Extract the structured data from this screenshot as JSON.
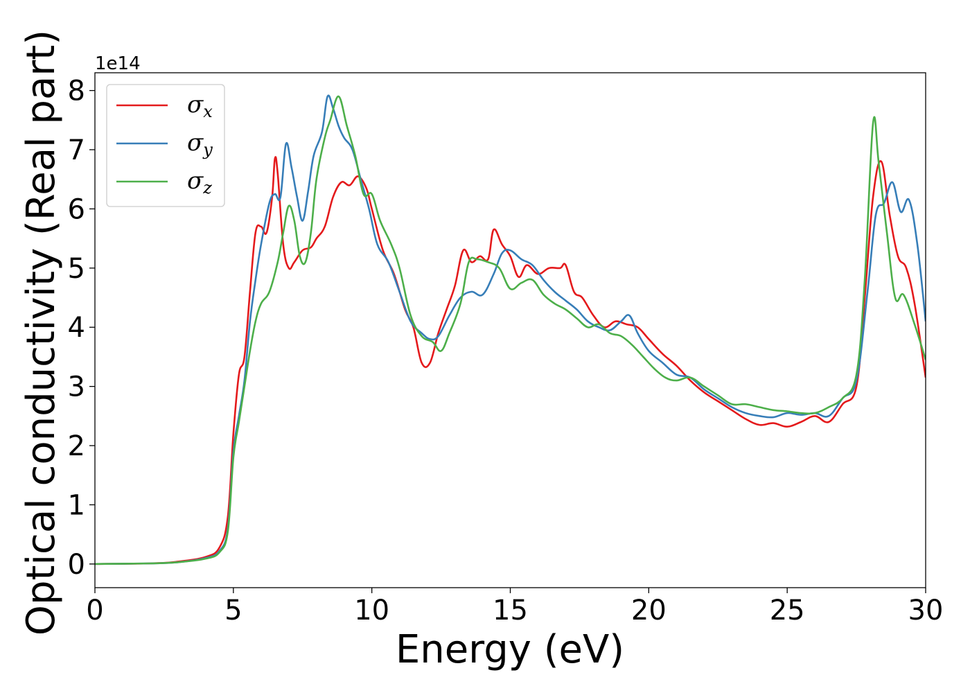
{
  "chart_data": {
    "type": "line",
    "xlabel": "Energy (eV)",
    "ylabel": "Optical conductivity (Real part)",
    "y_offset_label": "1e14",
    "xlim": [
      0,
      30
    ],
    "ylim": [
      -0.4,
      8.3
    ],
    "xticks": [
      0,
      5,
      10,
      15,
      20,
      25,
      30
    ],
    "yticks": [
      0,
      1,
      2,
      3,
      4,
      5,
      6,
      7,
      8
    ],
    "grid": false,
    "legend": {
      "placement": "top-left"
    },
    "series": [
      {
        "name": "σx",
        "symbol": "σ",
        "subscript": "x",
        "color": "#e41a1c",
        "points": [
          [
            0,
            0
          ],
          [
            2,
            0.01
          ],
          [
            3,
            0.04
          ],
          [
            4,
            0.12
          ],
          [
            4.5,
            0.28
          ],
          [
            4.8,
            0.8
          ],
          [
            5.0,
            2.2
          ],
          [
            5.2,
            3.2
          ],
          [
            5.4,
            3.5
          ],
          [
            5.6,
            4.6
          ],
          [
            5.8,
            5.6
          ],
          [
            6.0,
            5.7
          ],
          [
            6.2,
            5.6
          ],
          [
            6.4,
            6.2
          ],
          [
            6.5,
            6.85
          ],
          [
            6.6,
            6.6
          ],
          [
            6.8,
            5.4
          ],
          [
            7.0,
            5.0
          ],
          [
            7.2,
            5.1
          ],
          [
            7.5,
            5.3
          ],
          [
            7.8,
            5.35
          ],
          [
            8.0,
            5.5
          ],
          [
            8.3,
            5.7
          ],
          [
            8.6,
            6.2
          ],
          [
            8.9,
            6.45
          ],
          [
            9.2,
            6.4
          ],
          [
            9.5,
            6.55
          ],
          [
            9.8,
            6.35
          ],
          [
            10.0,
            6.0
          ],
          [
            10.4,
            5.3
          ],
          [
            10.8,
            4.9
          ],
          [
            11.2,
            4.3
          ],
          [
            11.5,
            4.0
          ],
          [
            11.8,
            3.4
          ],
          [
            12.1,
            3.4
          ],
          [
            12.4,
            3.9
          ],
          [
            12.7,
            4.3
          ],
          [
            13.0,
            4.7
          ],
          [
            13.3,
            5.3
          ],
          [
            13.6,
            5.1
          ],
          [
            13.9,
            5.2
          ],
          [
            14.2,
            5.15
          ],
          [
            14.4,
            5.65
          ],
          [
            14.7,
            5.4
          ],
          [
            15.0,
            5.2
          ],
          [
            15.3,
            4.85
          ],
          [
            15.6,
            5.05
          ],
          [
            16.0,
            4.9
          ],
          [
            16.4,
            5.0
          ],
          [
            16.8,
            5.0
          ],
          [
            17.0,
            5.05
          ],
          [
            17.3,
            4.6
          ],
          [
            17.6,
            4.5
          ],
          [
            18.0,
            4.2
          ],
          [
            18.4,
            4.0
          ],
          [
            18.8,
            4.1
          ],
          [
            19.2,
            4.05
          ],
          [
            19.6,
            4.0
          ],
          [
            20.0,
            3.8
          ],
          [
            20.5,
            3.55
          ],
          [
            21.0,
            3.35
          ],
          [
            21.5,
            3.1
          ],
          [
            22.0,
            2.9
          ],
          [
            22.5,
            2.75
          ],
          [
            23.0,
            2.6
          ],
          [
            23.5,
            2.45
          ],
          [
            24.0,
            2.35
          ],
          [
            24.5,
            2.38
          ],
          [
            25.0,
            2.32
          ],
          [
            25.5,
            2.4
          ],
          [
            26.0,
            2.5
          ],
          [
            26.5,
            2.4
          ],
          [
            27.0,
            2.7
          ],
          [
            27.5,
            3.0
          ],
          [
            27.8,
            4.5
          ],
          [
            28.1,
            6.2
          ],
          [
            28.4,
            6.8
          ],
          [
            28.7,
            5.9
          ],
          [
            29.0,
            5.2
          ],
          [
            29.3,
            5.0
          ],
          [
            29.6,
            4.4
          ],
          [
            30.0,
            3.15
          ]
        ]
      },
      {
        "name": "σy",
        "symbol": "σ",
        "subscript": "y",
        "color": "#377eb8",
        "points": [
          [
            0,
            0
          ],
          [
            2,
            0.01
          ],
          [
            3,
            0.03
          ],
          [
            4,
            0.1
          ],
          [
            4.5,
            0.22
          ],
          [
            4.8,
            0.6
          ],
          [
            5.0,
            1.9
          ],
          [
            5.2,
            2.5
          ],
          [
            5.4,
            3.1
          ],
          [
            5.6,
            4.1
          ],
          [
            5.8,
            4.8
          ],
          [
            6.0,
            5.4
          ],
          [
            6.3,
            6.1
          ],
          [
            6.5,
            6.25
          ],
          [
            6.7,
            6.2
          ],
          [
            6.9,
            7.1
          ],
          [
            7.1,
            6.7
          ],
          [
            7.3,
            6.2
          ],
          [
            7.5,
            5.8
          ],
          [
            7.7,
            6.3
          ],
          [
            7.9,
            6.9
          ],
          [
            8.2,
            7.3
          ],
          [
            8.4,
            7.9
          ],
          [
            8.6,
            7.7
          ],
          [
            8.8,
            7.4
          ],
          [
            9.0,
            7.2
          ],
          [
            9.3,
            7.0
          ],
          [
            9.6,
            6.5
          ],
          [
            9.9,
            6.0
          ],
          [
            10.2,
            5.4
          ],
          [
            10.6,
            5.1
          ],
          [
            11.0,
            4.6
          ],
          [
            11.4,
            4.1
          ],
          [
            11.8,
            3.9
          ],
          [
            12.1,
            3.8
          ],
          [
            12.4,
            3.85
          ],
          [
            12.8,
            4.2
          ],
          [
            13.2,
            4.5
          ],
          [
            13.6,
            4.6
          ],
          [
            14.0,
            4.55
          ],
          [
            14.4,
            4.9
          ],
          [
            14.7,
            5.25
          ],
          [
            15.0,
            5.3
          ],
          [
            15.4,
            5.15
          ],
          [
            15.8,
            5.05
          ],
          [
            16.2,
            4.8
          ],
          [
            16.6,
            4.6
          ],
          [
            17.0,
            4.45
          ],
          [
            17.4,
            4.3
          ],
          [
            17.8,
            4.1
          ],
          [
            18.2,
            4.0
          ],
          [
            18.6,
            3.95
          ],
          [
            19.0,
            4.1
          ],
          [
            19.3,
            4.2
          ],
          [
            19.6,
            3.9
          ],
          [
            20.0,
            3.6
          ],
          [
            20.5,
            3.4
          ],
          [
            21.0,
            3.2
          ],
          [
            21.5,
            3.15
          ],
          [
            22.0,
            2.95
          ],
          [
            22.5,
            2.8
          ],
          [
            23.0,
            2.65
          ],
          [
            23.5,
            2.55
          ],
          [
            24.0,
            2.5
          ],
          [
            24.5,
            2.48
          ],
          [
            25.0,
            2.55
          ],
          [
            25.5,
            2.52
          ],
          [
            26.0,
            2.55
          ],
          [
            26.5,
            2.5
          ],
          [
            27.0,
            2.8
          ],
          [
            27.5,
            3.1
          ],
          [
            27.9,
            4.6
          ],
          [
            28.2,
            5.9
          ],
          [
            28.5,
            6.1
          ],
          [
            28.8,
            6.45
          ],
          [
            29.1,
            5.95
          ],
          [
            29.4,
            6.15
          ],
          [
            29.7,
            5.4
          ],
          [
            30.0,
            4.1
          ]
        ]
      },
      {
        "name": "σz",
        "symbol": "σ",
        "subscript": "z",
        "color": "#4daf4a",
        "points": [
          [
            0,
            0
          ],
          [
            2,
            0.01
          ],
          [
            3,
            0.03
          ],
          [
            4,
            0.09
          ],
          [
            4.5,
            0.2
          ],
          [
            4.8,
            0.55
          ],
          [
            5.0,
            1.8
          ],
          [
            5.2,
            2.4
          ],
          [
            5.4,
            3.0
          ],
          [
            5.6,
            3.6
          ],
          [
            5.8,
            4.1
          ],
          [
            6.0,
            4.4
          ],
          [
            6.3,
            4.6
          ],
          [
            6.6,
            5.1
          ],
          [
            6.8,
            5.6
          ],
          [
            7.0,
            6.05
          ],
          [
            7.2,
            5.8
          ],
          [
            7.4,
            5.2
          ],
          [
            7.6,
            5.1
          ],
          [
            7.8,
            5.6
          ],
          [
            8.0,
            6.5
          ],
          [
            8.3,
            7.2
          ],
          [
            8.5,
            7.5
          ],
          [
            8.8,
            7.9
          ],
          [
            9.1,
            7.4
          ],
          [
            9.4,
            6.9
          ],
          [
            9.7,
            6.25
          ],
          [
            10.0,
            6.25
          ],
          [
            10.3,
            5.8
          ],
          [
            10.7,
            5.4
          ],
          [
            11.0,
            5.0
          ],
          [
            11.4,
            4.2
          ],
          [
            11.8,
            3.85
          ],
          [
            12.2,
            3.75
          ],
          [
            12.5,
            3.6
          ],
          [
            12.8,
            3.9
          ],
          [
            13.2,
            4.4
          ],
          [
            13.5,
            5.1
          ],
          [
            13.8,
            5.15
          ],
          [
            14.2,
            5.1
          ],
          [
            14.6,
            5.0
          ],
          [
            15.0,
            4.65
          ],
          [
            15.4,
            4.75
          ],
          [
            15.8,
            4.8
          ],
          [
            16.2,
            4.55
          ],
          [
            16.6,
            4.4
          ],
          [
            17.0,
            4.3
          ],
          [
            17.4,
            4.15
          ],
          [
            17.8,
            4.0
          ],
          [
            18.2,
            4.05
          ],
          [
            18.6,
            3.9
          ],
          [
            19.0,
            3.85
          ],
          [
            19.4,
            3.7
          ],
          [
            19.8,
            3.5
          ],
          [
            20.2,
            3.3
          ],
          [
            20.6,
            3.15
          ],
          [
            21.0,
            3.1
          ],
          [
            21.5,
            3.15
          ],
          [
            22.0,
            3.0
          ],
          [
            22.5,
            2.85
          ],
          [
            23.0,
            2.7
          ],
          [
            23.5,
            2.7
          ],
          [
            24.0,
            2.65
          ],
          [
            24.5,
            2.6
          ],
          [
            25.0,
            2.58
          ],
          [
            25.5,
            2.55
          ],
          [
            26.0,
            2.55
          ],
          [
            26.5,
            2.65
          ],
          [
            27.0,
            2.8
          ],
          [
            27.5,
            3.2
          ],
          [
            27.8,
            4.8
          ],
          [
            28.1,
            7.45
          ],
          [
            28.3,
            6.8
          ],
          [
            28.6,
            5.6
          ],
          [
            28.9,
            4.5
          ],
          [
            29.2,
            4.55
          ],
          [
            29.6,
            4.05
          ],
          [
            30.0,
            3.45
          ]
        ]
      }
    ]
  }
}
